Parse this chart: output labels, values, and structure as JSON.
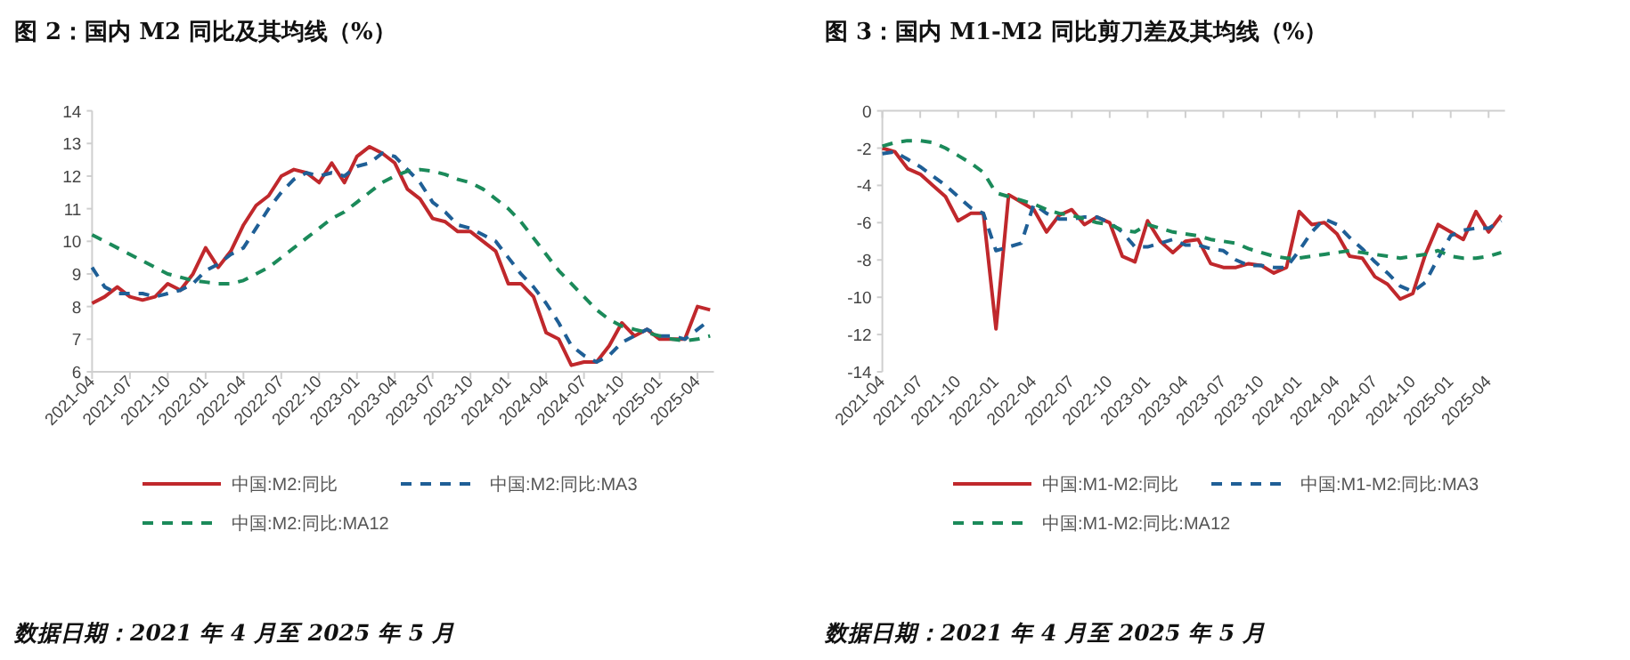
{
  "chart_data": [
    {
      "type": "line",
      "title": "图 2：国内 M2 同比及其均线（%）",
      "categories": [
        "2021-04",
        null,
        null,
        "2021-07",
        null,
        null,
        "2021-10",
        null,
        null,
        "2022-01",
        null,
        null,
        "2022-04",
        null,
        null,
        "2022-07",
        null,
        null,
        "2022-10",
        null,
        null,
        "2023-01",
        null,
        null,
        "2023-04",
        null,
        null,
        "2023-07",
        null,
        null,
        "2023-10",
        null,
        null,
        "2024-01",
        null,
        null,
        "2024-04",
        null,
        null,
        "2024-07",
        null,
        null,
        "2024-10",
        null,
        null,
        "2025-01",
        null,
        null,
        "2025-04",
        null
      ],
      "ylim": [
        6,
        14
      ],
      "yticks": [
        6,
        7,
        8,
        9,
        10,
        11,
        12,
        13,
        14
      ],
      "legend": "bottom",
      "series": [
        {
          "name": "中国:M2:同比",
          "color": "#c0282c",
          "line_style": "solid",
          "values": [
            8.1,
            8.3,
            8.6,
            8.3,
            8.2,
            8.3,
            8.7,
            8.5,
            9.0,
            9.8,
            9.2,
            9.7,
            10.5,
            11.1,
            11.4,
            12.0,
            12.2,
            12.1,
            11.8,
            12.4,
            11.8,
            12.6,
            12.9,
            12.7,
            12.4,
            11.6,
            11.3,
            10.7,
            10.6,
            10.3,
            10.3,
            10.0,
            9.7,
            8.7,
            8.7,
            8.3,
            7.2,
            7.0,
            6.2,
            6.3,
            6.3,
            6.8,
            7.5,
            7.1,
            7.3,
            7.0,
            7.0,
            7.0,
            8.0,
            7.9
          ]
        },
        {
          "name": "中国:M2:同比:MA3",
          "color": "#1f5f96",
          "line_style": "dashed",
          "values": [
            9.2,
            8.6,
            8.4,
            8.4,
            8.4,
            8.3,
            8.4,
            8.5,
            8.7,
            9.1,
            9.3,
            9.6,
            9.8,
            10.4,
            11.0,
            11.5,
            11.9,
            12.1,
            12.0,
            12.1,
            12.0,
            12.3,
            12.4,
            12.7,
            12.6,
            12.2,
            11.8,
            11.2,
            10.9,
            10.5,
            10.4,
            10.2,
            10.0,
            9.5,
            9.0,
            8.6,
            8.1,
            7.5,
            6.8,
            6.5,
            6.3,
            6.5,
            6.9,
            7.1,
            7.3,
            7.1,
            7.1,
            7.0,
            7.3,
            7.6
          ]
        },
        {
          "name": "中国:M2:同比:MA12",
          "color": "#1b8a5a",
          "line_style": "dashed",
          "values": [
            10.2,
            10.0,
            9.8,
            9.6,
            9.4,
            9.2,
            9.0,
            8.9,
            8.8,
            8.75,
            8.7,
            8.7,
            8.8,
            9.0,
            9.2,
            9.5,
            9.8,
            10.1,
            10.4,
            10.7,
            10.9,
            11.2,
            11.5,
            11.8,
            12.0,
            12.15,
            12.2,
            12.15,
            12.05,
            11.9,
            11.8,
            11.6,
            11.3,
            11.0,
            10.6,
            10.1,
            9.6,
            9.1,
            8.7,
            8.3,
            7.9,
            7.6,
            7.4,
            7.3,
            7.2,
            7.1,
            7.0,
            6.95,
            7.0,
            7.1
          ]
        }
      ],
      "annotations": [
        "数据日期：2021 年 4 月至 2025 年 5 月"
      ]
    },
    {
      "type": "line",
      "title": "图 3：国内 M1-M2 同比剪刀差及其均线（%）",
      "categories": [
        "2021-04",
        null,
        null,
        "2021-07",
        null,
        null,
        "2021-10",
        null,
        null,
        "2022-01",
        null,
        null,
        "2022-04",
        null,
        null,
        "2022-07",
        null,
        null,
        "2022-10",
        null,
        null,
        "2023-01",
        null,
        null,
        "2023-04",
        null,
        null,
        "2023-07",
        null,
        null,
        "2023-10",
        null,
        null,
        "2024-01",
        null,
        null,
        "2024-04",
        null,
        null,
        "2024-07",
        null,
        null,
        "2024-10",
        null,
        null,
        "2025-01",
        null,
        null,
        "2025-04",
        null
      ],
      "ylim": [
        -14,
        0
      ],
      "yticks": [
        -14,
        -12,
        -10,
        -8,
        -6,
        -4,
        -2,
        0
      ],
      "legend": "bottom",
      "series": [
        {
          "name": "中国:M1-M2:同比",
          "color": "#c0282c",
          "line_style": "solid",
          "values": [
            -2.0,
            -2.2,
            -3.1,
            -3.4,
            -4.0,
            -4.6,
            -5.9,
            -5.5,
            -5.5,
            -11.7,
            -4.5,
            -4.9,
            -5.3,
            -6.5,
            -5.6,
            -5.3,
            -6.1,
            -5.7,
            -6.0,
            -7.8,
            -8.1,
            -5.9,
            -7.0,
            -7.6,
            -7.0,
            -6.9,
            -8.2,
            -8.4,
            -8.4,
            -8.2,
            -8.3,
            -8.7,
            -8.4,
            -5.4,
            -6.1,
            -6.0,
            -6.6,
            -7.8,
            -7.9,
            -8.9,
            -9.3,
            -10.1,
            -9.8,
            -7.7,
            -6.1,
            -6.5,
            -6.9,
            -5.4,
            -6.5,
            -5.6
          ]
        },
        {
          "name": "中国:M1-M2:同比:MA3",
          "color": "#1f5f96",
          "line_style": "dashed",
          "values": [
            -2.3,
            -2.2,
            -2.6,
            -3.0,
            -3.5,
            -4.0,
            -4.6,
            -5.2,
            -5.5,
            -7.5,
            -7.3,
            -7.1,
            -5.0,
            -5.5,
            -5.8,
            -5.8,
            -5.7,
            -5.7,
            -6.0,
            -6.5,
            -7.3,
            -7.3,
            -7.1,
            -6.9,
            -7.2,
            -7.2,
            -7.4,
            -7.5,
            -8.0,
            -8.3,
            -8.3,
            -8.4,
            -8.4,
            -7.5,
            -6.5,
            -5.8,
            -6.1,
            -6.8,
            -7.4,
            -8.1,
            -8.7,
            -9.4,
            -9.7,
            -9.2,
            -7.9,
            -6.7,
            -6.4,
            -6.3,
            -6.3,
            -5.9
          ]
        },
        {
          "name": "中国:M1-M2:同比:MA12",
          "color": "#1b8a5a",
          "line_style": "dashed",
          "values": [
            -1.9,
            -1.7,
            -1.6,
            -1.6,
            -1.7,
            -2.0,
            -2.4,
            -2.8,
            -3.3,
            -4.4,
            -4.6,
            -4.8,
            -5.0,
            -5.3,
            -5.5,
            -5.6,
            -5.8,
            -6.0,
            -6.1,
            -6.4,
            -6.5,
            -6.1,
            -6.3,
            -6.5,
            -6.6,
            -6.7,
            -6.9,
            -7.0,
            -7.1,
            -7.4,
            -7.6,
            -7.8,
            -7.9,
            -7.9,
            -7.8,
            -7.7,
            -7.6,
            -7.5,
            -7.6,
            -7.7,
            -7.8,
            -7.9,
            -7.8,
            -7.7,
            -7.5,
            -7.8,
            -7.9,
            -7.9,
            -7.8,
            -7.6
          ]
        }
      ],
      "annotations": [
        "数据日期：2021 年 4 月至 2025 年 5 月"
      ]
    }
  ]
}
